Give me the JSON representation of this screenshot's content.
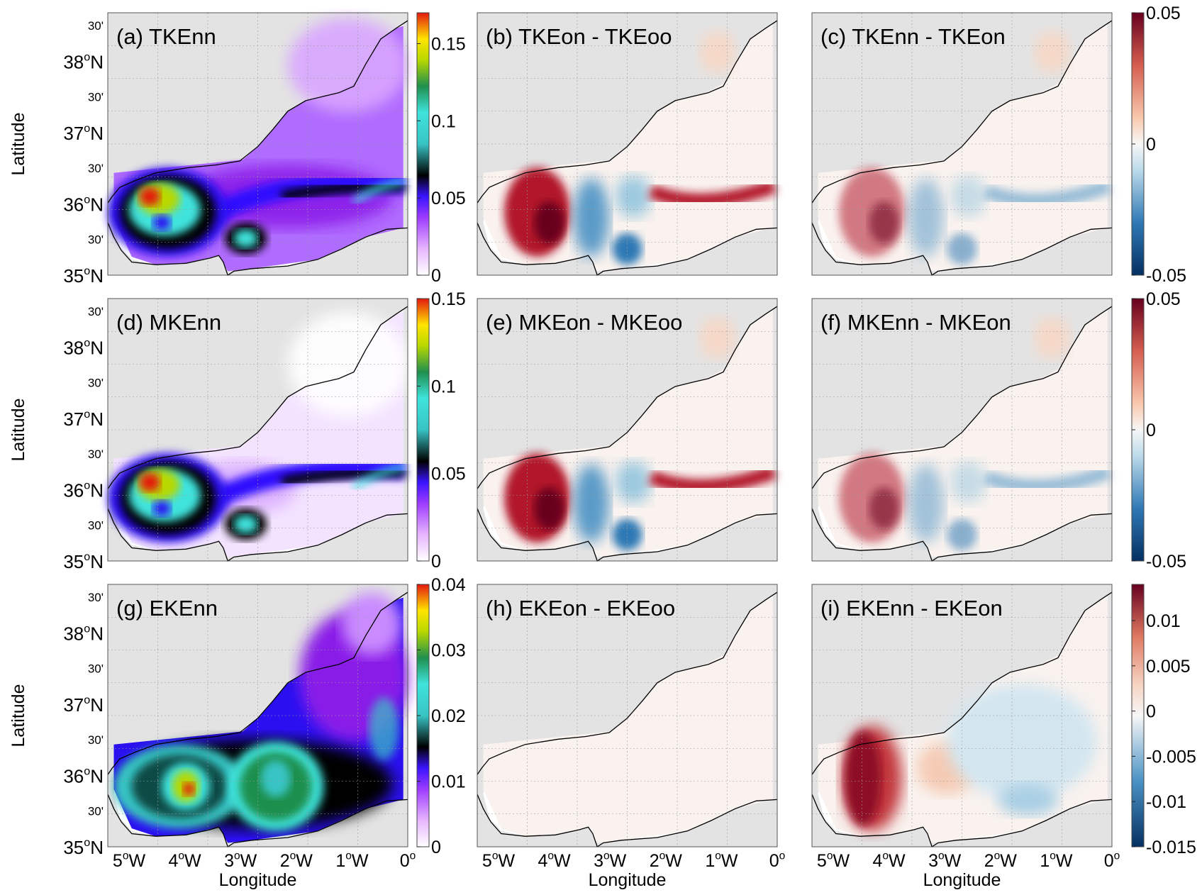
{
  "figure": {
    "ylabel": "Latitude",
    "xlabel": "Longitude",
    "lat_ticks": [
      {
        "main": "30'",
        "sup": ""
      },
      {
        "main": "38",
        "sup": "o",
        "suffix": "N"
      },
      {
        "main": "30'",
        "sup": ""
      },
      {
        "main": "37",
        "sup": "o",
        "suffix": "N"
      },
      {
        "main": "30'",
        "sup": ""
      },
      {
        "main": "36",
        "sup": "o",
        "suffix": "N"
      },
      {
        "main": "30'",
        "sup": ""
      },
      {
        "main": "35",
        "sup": "o",
        "suffix": "N"
      }
    ],
    "lon_ticks": [
      {
        "main": "5",
        "sup": "o",
        "suffix": "W"
      },
      {
        "main": "4",
        "sup": "o",
        "suffix": "W"
      },
      {
        "main": "3",
        "sup": "o",
        "suffix": "W"
      },
      {
        "main": "2",
        "sup": "o",
        "suffix": "W"
      },
      {
        "main": "1",
        "sup": "o",
        "suffix": "W"
      },
      {
        "main": "0",
        "sup": "o",
        "suffix": ""
      }
    ],
    "colors": {
      "land": "#e3e3e3",
      "coast": "#000000",
      "grid": "#9a9a9a"
    }
  },
  "chart_data": [
    {
      "type": "heatmap",
      "title": "(a) TKEnn",
      "colormap": "spectral",
      "colorbar": {
        "ticks": [
          "0",
          "0.05",
          "0.1",
          "0.15"
        ],
        "range": [
          0,
          0.17
        ]
      }
    },
    {
      "type": "heatmap",
      "title": "(b) TKEon - TKEoo",
      "colormap": "diverging",
      "colorbar": null
    },
    {
      "type": "heatmap",
      "title": "(c) TKEnn - TKEon",
      "colormap": "diverging",
      "colorbar": {
        "ticks": [
          "-0.05",
          "0",
          "0.05"
        ],
        "range": [
          -0.05,
          0.05
        ]
      }
    },
    {
      "type": "heatmap",
      "title": "(d) MKEnn",
      "colormap": "spectral",
      "colorbar": {
        "ticks": [
          "0",
          "0.05",
          "0.1",
          "0.15"
        ],
        "range": [
          0,
          0.15
        ]
      }
    },
    {
      "type": "heatmap",
      "title": "(e) MKEon - MKEoo",
      "colormap": "diverging",
      "colorbar": null
    },
    {
      "type": "heatmap",
      "title": "(f) MKEnn - MKEon",
      "colormap": "diverging",
      "colorbar": {
        "ticks": [
          "-0.05",
          "0",
          "0.05"
        ],
        "range": [
          -0.05,
          0.05
        ]
      }
    },
    {
      "type": "heatmap",
      "title": "(g) EKEnn",
      "colormap": "spectral",
      "colorbar": {
        "ticks": [
          "0",
          "0.01",
          "0.02",
          "0.03",
          "0.04"
        ],
        "range": [
          0,
          0.04
        ]
      }
    },
    {
      "type": "heatmap",
      "title": "(h) EKEon - EKEoo",
      "colormap": "diverging",
      "colorbar": null
    },
    {
      "type": "heatmap",
      "title": "(i) EKEnn - EKEon",
      "colormap": "diverging",
      "colorbar": {
        "ticks": [
          "-0.015",
          "-0.01",
          "-0.005",
          "0",
          "0.005",
          "0.01"
        ],
        "range": [
          -0.015,
          0.014
        ]
      }
    }
  ]
}
